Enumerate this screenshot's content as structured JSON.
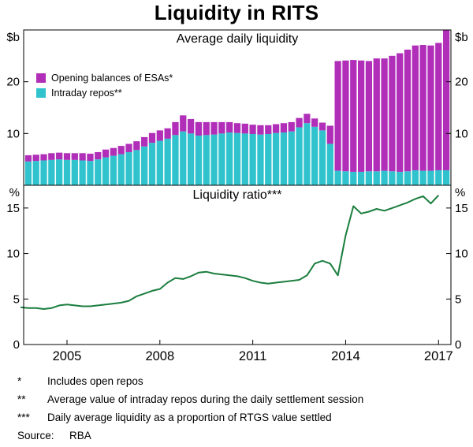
{
  "title": "Liquidity in RITS",
  "source_label": "Source:",
  "source_value": "RBA",
  "footnotes": [
    {
      "marker": "*",
      "text": "Includes open repos"
    },
    {
      "marker": "**",
      "text": "Average value of intraday repos during the daily settlement session"
    },
    {
      "marker": "***",
      "text": "Daily average liquidity as a proportion of RTGS value settled"
    }
  ],
  "chart_data": [
    {
      "type": "bar",
      "stacked": true,
      "panel_title": "Average daily liquidity",
      "unit_left": "$b",
      "unit_right": "$b",
      "ylim": [
        0,
        30
      ],
      "yticks": [
        10,
        20
      ],
      "xlim": [
        2003.6,
        2017.4
      ],
      "legend": [
        {
          "name": "Opening balances of ESAs*",
          "color": "#b02eb8"
        },
        {
          "name": "Intraday repos**",
          "color": "#30c3cd"
        }
      ],
      "x": [
        2003.75,
        2004,
        2004.25,
        2004.5,
        2004.75,
        2005,
        2005.25,
        2005.5,
        2005.75,
        2006,
        2006.25,
        2006.5,
        2006.75,
        2007,
        2007.25,
        2007.5,
        2007.75,
        2008,
        2008.25,
        2008.5,
        2008.75,
        2009,
        2009.25,
        2009.5,
        2009.75,
        2010,
        2010.25,
        2010.5,
        2010.75,
        2011,
        2011.25,
        2011.5,
        2011.75,
        2012,
        2012.25,
        2012.5,
        2012.75,
        2013,
        2013.25,
        2013.5,
        2013.75,
        2014,
        2014.25,
        2014.5,
        2014.75,
        2015,
        2015.25,
        2015.5,
        2015.75,
        2016,
        2016.25,
        2016.5,
        2016.75,
        2017,
        2017.25
      ],
      "series": [
        {
          "name": "Intraday repos**",
          "color": "#30c3cd",
          "values": [
            4.6,
            4.7,
            4.8,
            4.9,
            5.0,
            4.9,
            4.9,
            4.8,
            4.7,
            5.0,
            5.4,
            5.7,
            6.0,
            6.4,
            6.8,
            7.5,
            8.2,
            8.6,
            9.0,
            9.7,
            10.4,
            10.0,
            9.6,
            9.7,
            9.8,
            10.0,
            10.2,
            10.1,
            10.0,
            9.9,
            9.8,
            9.9,
            10.1,
            10.2,
            10.4,
            11.2,
            12.0,
            11.3,
            10.6,
            8.0,
            2.8,
            2.7,
            2.6,
            2.6,
            2.7,
            2.7,
            2.8,
            2.7,
            2.6,
            2.7,
            2.9,
            2.8,
            2.8,
            2.9,
            2.9
          ]
        },
        {
          "name": "Opening balances of ESAs*",
          "color": "#b02eb8",
          "values": [
            1.2,
            1.2,
            1.2,
            1.3,
            1.3,
            1.3,
            1.3,
            1.4,
            1.4,
            1.4,
            1.5,
            1.5,
            1.6,
            1.6,
            1.7,
            1.8,
            1.9,
            2.0,
            2.0,
            2.5,
            3.1,
            2.8,
            2.6,
            2.5,
            2.4,
            2.2,
            2.0,
            1.9,
            1.9,
            1.8,
            1.8,
            1.7,
            1.7,
            1.8,
            1.8,
            1.8,
            1.8,
            1.6,
            1.5,
            3.5,
            21.2,
            21.4,
            21.6,
            21.5,
            21.3,
            21.8,
            21.7,
            22.3,
            22.9,
            23.5,
            24.1,
            24.3,
            24.2,
            24.6,
            27.1
          ]
        }
      ]
    },
    {
      "type": "line",
      "panel_title": "Liquidity ratio***",
      "unit_left": "%",
      "unit_right": "%",
      "color": "#1b7e3e",
      "ylim": [
        0,
        17.5
      ],
      "yticks": [
        0,
        5,
        10,
        15
      ],
      "xlim": [
        2003.6,
        2017.4
      ],
      "xticks": [
        2005,
        2008,
        2011,
        2014,
        2017
      ],
      "x": [
        2003.5,
        2003.75,
        2004,
        2004.25,
        2004.5,
        2004.75,
        2005,
        2005.25,
        2005.5,
        2005.75,
        2006,
        2006.25,
        2006.5,
        2006.75,
        2007,
        2007.25,
        2007.5,
        2007.75,
        2008,
        2008.25,
        2008.5,
        2008.75,
        2009,
        2009.25,
        2009.5,
        2009.75,
        2010,
        2010.25,
        2010.5,
        2010.75,
        2011,
        2011.25,
        2011.5,
        2011.75,
        2012,
        2012.25,
        2012.5,
        2012.75,
        2013,
        2013.25,
        2013.5,
        2013.75,
        2014,
        2014.25,
        2014.5,
        2014.75,
        2015,
        2015.25,
        2015.5,
        2015.75,
        2016,
        2016.25,
        2016.5,
        2016.75,
        2017
      ],
      "values": [
        4.1,
        4.0,
        4.0,
        3.9,
        4.0,
        4.3,
        4.4,
        4.3,
        4.2,
        4.2,
        4.3,
        4.4,
        4.5,
        4.6,
        4.8,
        5.3,
        5.6,
        5.9,
        6.1,
        6.8,
        7.3,
        7.2,
        7.5,
        7.9,
        8.0,
        7.8,
        7.7,
        7.6,
        7.5,
        7.3,
        7.0,
        6.8,
        6.7,
        6.8,
        6.9,
        7.0,
        7.1,
        7.6,
        8.9,
        9.2,
        8.9,
        7.6,
        12.0,
        15.2,
        14.4,
        14.6,
        14.9,
        14.7,
        15.0,
        15.3,
        15.6,
        16.0,
        16.3,
        15.5,
        16.4
      ]
    }
  ]
}
